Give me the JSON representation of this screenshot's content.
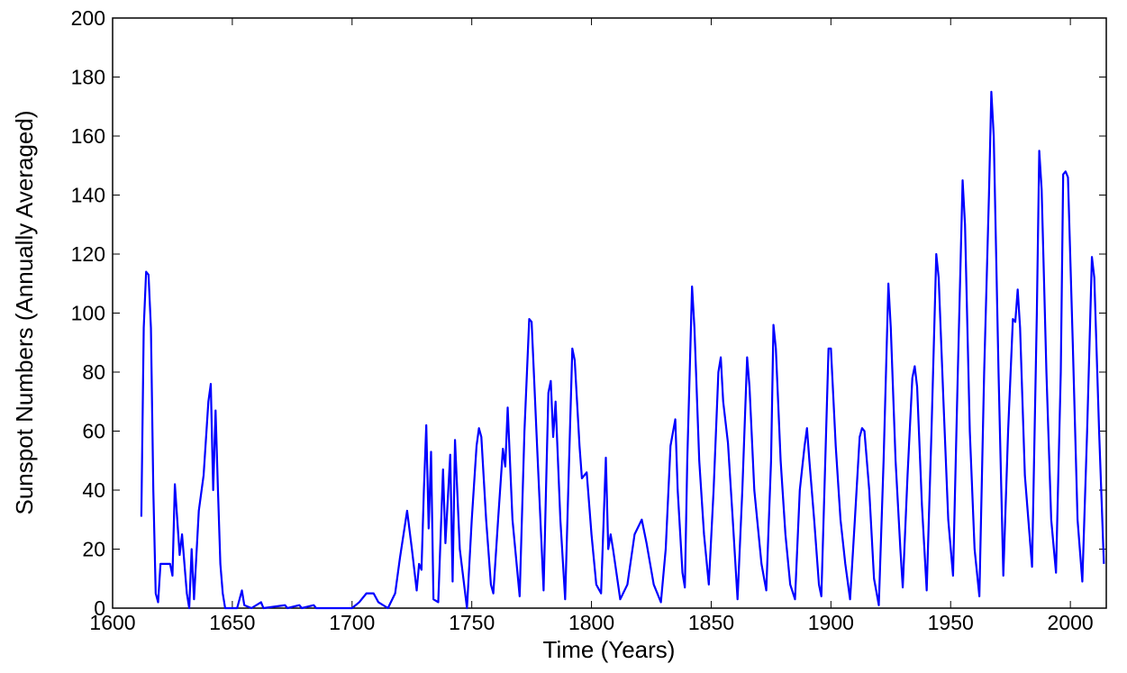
{
  "chart_data": {
    "type": "line",
    "xlabel": "Time (Years)",
    "ylabel": "Sunspot Numbers (Annually Averaged)",
    "color": "#0000ff",
    "xlim": [
      1600,
      2015
    ],
    "ylim": [
      0,
      200
    ],
    "xticks": [
      1600,
      1650,
      1700,
      1750,
      1800,
      1850,
      1900,
      1950,
      2000
    ],
    "yticks": [
      0,
      20,
      40,
      60,
      80,
      100,
      120,
      140,
      160,
      180,
      200
    ],
    "grid": false,
    "x": [
      1612,
      1613,
      1614,
      1615,
      1616,
      1617,
      1618,
      1619,
      1620,
      1621,
      1622,
      1623,
      1624,
      1625,
      1626,
      1627,
      1628,
      1629,
      1630,
      1631,
      1632,
      1633,
      1634,
      1635,
      1636,
      1638,
      1640,
      1641,
      1642,
      1643,
      1644,
      1645,
      1646,
      1647,
      1652,
      1654,
      1655,
      1658,
      1662,
      1663,
      1672,
      1673,
      1678,
      1679,
      1684,
      1685,
      1690,
      1700,
      1703,
      1706,
      1709,
      1711,
      1715,
      1718,
      1720,
      1723,
      1725,
      1727,
      1728,
      1729,
      1730,
      1731,
      1732,
      1733,
      1734,
      1736,
      1738,
      1739,
      1741,
      1742,
      1743,
      1745,
      1748,
      1750,
      1752,
      1753,
      1754,
      1756,
      1758,
      1759,
      1761,
      1763,
      1764,
      1765,
      1767,
      1770,
      1772,
      1774,
      1775,
      1777,
      1780,
      1781,
      1782,
      1783,
      1784,
      1785,
      1787,
      1789,
      1791,
      1792,
      1793,
      1795,
      1796,
      1798,
      1800,
      1802,
      1804,
      1806,
      1807,
      1808,
      1809,
      1812,
      1815,
      1818,
      1821,
      1823,
      1826,
      1829,
      1831,
      1833,
      1835,
      1836,
      1838,
      1839,
      1840,
      1842,
      1843,
      1845,
      1847,
      1849,
      1851,
      1853,
      1854,
      1855,
      1857,
      1859,
      1861,
      1863,
      1865,
      1866,
      1868,
      1871,
      1873,
      1875,
      1876,
      1877,
      1879,
      1881,
      1883,
      1885,
      1887,
      1889,
      1890,
      1891,
      1893,
      1895,
      1896,
      1898,
      1899,
      1900,
      1902,
      1904,
      1906,
      1908,
      1910,
      1912,
      1913,
      1914,
      1916,
      1918,
      1920,
      1922,
      1924,
      1925,
      1927,
      1929,
      1930,
      1932,
      1934,
      1935,
      1936,
      1938,
      1940,
      1942,
      1944,
      1945,
      1947,
      1949,
      1951,
      1953,
      1955,
      1956,
      1958,
      1960,
      1962,
      1964,
      1966,
      1967,
      1968,
      1970,
      1972,
      1974,
      1976,
      1977,
      1978,
      1979,
      1981,
      1984,
      1986,
      1987,
      1988,
      1990,
      1992,
      1994,
      1996,
      1997,
      1998,
      1999,
      2001,
      2003,
      2005,
      2007,
      2009,
      2010,
      2012,
      2014
    ],
    "values": [
      31,
      95,
      114,
      113,
      95,
      40,
      5,
      2,
      15,
      15,
      15,
      15,
      15,
      11,
      42,
      30,
      18,
      25,
      15,
      5,
      0,
      20,
      3,
      18,
      33,
      45,
      70,
      76,
      40,
      67,
      40,
      15,
      5,
      0,
      0,
      6,
      1,
      0,
      2,
      0,
      1,
      0,
      1,
      0,
      1,
      0,
      0,
      0,
      2,
      5,
      5,
      2,
      0,
      5,
      17,
      33,
      20,
      6,
      15,
      13,
      40,
      62,
      27,
      53,
      3,
      2,
      47,
      22,
      52,
      9,
      57,
      20,
      0,
      30,
      55,
      61,
      58,
      30,
      8,
      5,
      30,
      54,
      48,
      68,
      30,
      4,
      60,
      98,
      97,
      60,
      6,
      40,
      73,
      77,
      58,
      70,
      30,
      3,
      60,
      88,
      84,
      55,
      44,
      46,
      25,
      8,
      5,
      51,
      20,
      25,
      20,
      3,
      8,
      25,
      30,
      22,
      8,
      2,
      20,
      55,
      64,
      40,
      12,
      7,
      50,
      109,
      95,
      50,
      25,
      8,
      40,
      80,
      85,
      70,
      56,
      30,
      3,
      40,
      85,
      75,
      40,
      15,
      6,
      50,
      96,
      88,
      50,
      25,
      8,
      3,
      40,
      55,
      61,
      50,
      30,
      8,
      4,
      60,
      88,
      88,
      55,
      30,
      15,
      3,
      30,
      58,
      61,
      60,
      40,
      10,
      1,
      50,
      110,
      95,
      50,
      20,
      7,
      45,
      78,
      82,
      75,
      35,
      6,
      60,
      120,
      112,
      70,
      30,
      11,
      80,
      145,
      130,
      60,
      20,
      4,
      80,
      140,
      175,
      160,
      80,
      11,
      60,
      98,
      97,
      108,
      95,
      45,
      14,
      100,
      155,
      142,
      80,
      30,
      12,
      80,
      147,
      148,
      146,
      90,
      30,
      9,
      60,
      119,
      112,
      60,
      15
    ]
  }
}
